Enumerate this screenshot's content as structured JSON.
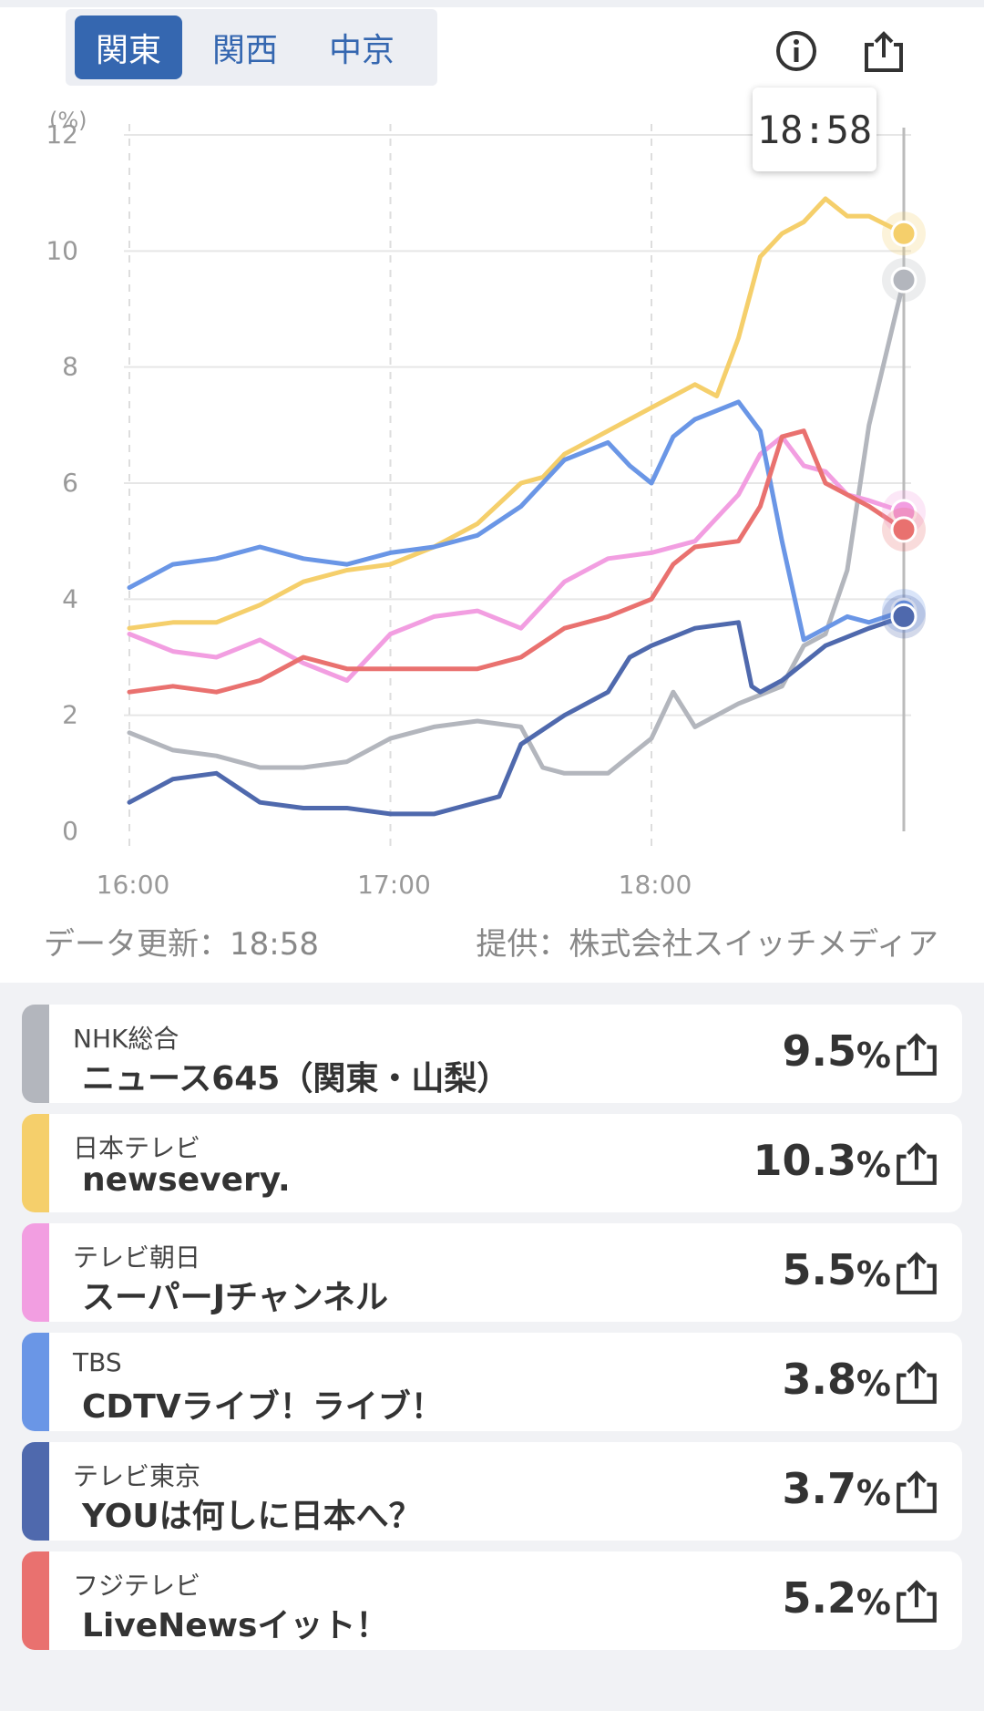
{
  "region_tabs": [
    "関東",
    "関西",
    "中京"
  ],
  "region_active": 0,
  "header_icons": [
    "info-icon",
    "share-icon"
  ],
  "tooltip": "18:58",
  "update_text": "データ更新：18:58",
  "provider_text": "提供：株式会社スイッチメディア",
  "chart_data": {
    "type": "line",
    "ylabel": "(%)",
    "ylim": [
      0,
      12
    ],
    "yticks": [
      "0",
      "2",
      "4",
      "6",
      "8",
      "10",
      "12"
    ],
    "xticks": [
      "16:00",
      "17:00",
      "18:00"
    ],
    "x_range_minutes": [
      0,
      178
    ],
    "grid": true,
    "series": [
      {
        "name": "NHK総合",
        "color": "#b3b6bd",
        "x": [
          0,
          10,
          20,
          30,
          40,
          50,
          60,
          70,
          80,
          90,
          95,
          100,
          110,
          120,
          125,
          130,
          140,
          150,
          155,
          160,
          165,
          170,
          178
        ],
        "y": [
          1.7,
          1.4,
          1.3,
          1.1,
          1.1,
          1.2,
          1.6,
          1.8,
          1.9,
          1.8,
          1.1,
          1.0,
          1.0,
          1.6,
          2.4,
          1.8,
          2.2,
          2.5,
          3.2,
          3.4,
          4.5,
          7.0,
          9.5
        ]
      },
      {
        "name": "日本テレビ",
        "color": "#f5cf6b",
        "x": [
          0,
          10,
          20,
          30,
          40,
          50,
          60,
          70,
          80,
          90,
          95,
          100,
          110,
          120,
          130,
          135,
          140,
          145,
          150,
          155,
          160,
          165,
          170,
          178
        ],
        "y": [
          3.5,
          3.6,
          3.6,
          3.9,
          4.3,
          4.5,
          4.6,
          4.9,
          5.3,
          6.0,
          6.1,
          6.5,
          6.9,
          7.3,
          7.7,
          7.5,
          8.5,
          9.9,
          10.3,
          10.5,
          10.9,
          10.6,
          10.6,
          10.3
        ]
      },
      {
        "name": "テレビ朝日",
        "color": "#f29ee1",
        "x": [
          0,
          10,
          20,
          30,
          40,
          50,
          60,
          70,
          80,
          90,
          100,
          110,
          120,
          130,
          140,
          145,
          150,
          155,
          160,
          165,
          170,
          178
        ],
        "y": [
          3.4,
          3.1,
          3.0,
          3.3,
          2.9,
          2.6,
          3.4,
          3.7,
          3.8,
          3.5,
          4.3,
          4.7,
          4.8,
          5.0,
          5.8,
          6.5,
          6.8,
          6.3,
          6.2,
          5.8,
          5.7,
          5.5
        ]
      },
      {
        "name": "TBS",
        "color": "#6a96e6",
        "x": [
          0,
          10,
          20,
          30,
          40,
          50,
          60,
          70,
          80,
          90,
          100,
          110,
          115,
          120,
          125,
          130,
          140,
          145,
          150,
          155,
          160,
          165,
          170,
          178
        ],
        "y": [
          4.2,
          4.6,
          4.7,
          4.9,
          4.7,
          4.6,
          4.8,
          4.9,
          5.1,
          5.6,
          6.4,
          6.7,
          6.3,
          6.0,
          6.8,
          7.1,
          7.4,
          6.9,
          5.0,
          3.3,
          3.5,
          3.7,
          3.6,
          3.8
        ]
      },
      {
        "name": "テレビ東京",
        "color": "#4f69ad",
        "x": [
          0,
          10,
          20,
          30,
          40,
          50,
          60,
          70,
          80,
          85,
          90,
          100,
          110,
          115,
          120,
          130,
          140,
          143,
          145,
          150,
          160,
          170,
          178
        ],
        "y": [
          0.5,
          0.9,
          1.0,
          0.5,
          0.4,
          0.4,
          0.3,
          0.3,
          0.5,
          0.6,
          1.5,
          2.0,
          2.4,
          3.0,
          3.2,
          3.5,
          3.6,
          2.5,
          2.4,
          2.6,
          3.2,
          3.5,
          3.7
        ]
      },
      {
        "name": "フジテレビ",
        "color": "#e9716f",
        "x": [
          0,
          10,
          20,
          30,
          40,
          50,
          60,
          70,
          80,
          90,
          100,
          110,
          120,
          125,
          130,
          140,
          145,
          150,
          155,
          160,
          165,
          170,
          178
        ],
        "y": [
          2.4,
          2.5,
          2.4,
          2.6,
          3.0,
          2.8,
          2.8,
          2.8,
          2.8,
          3.0,
          3.5,
          3.7,
          4.0,
          4.6,
          4.9,
          5.0,
          5.6,
          6.8,
          6.9,
          6.0,
          5.8,
          5.6,
          5.2
        ]
      }
    ]
  },
  "channels": [
    {
      "station": "NHK総合",
      "program": "ニュース645（関東・山梨）",
      "value": "9.5",
      "unit": "%",
      "color": "#b3b6bd"
    },
    {
      "station": "日本テレビ",
      "program": "newsevery.",
      "value": "10.3",
      "unit": "%",
      "color": "#f5cf6b"
    },
    {
      "station": "テレビ朝日",
      "program": "スーパーJチャンネル",
      "value": "5.5",
      "unit": "%",
      "color": "#f29ee1"
    },
    {
      "station": "TBS",
      "program": "CDTVライブ！ライブ！",
      "value": "3.8",
      "unit": "%",
      "color": "#6a96e6"
    },
    {
      "station": "テレビ東京",
      "program": "YOUは何しに日本へ？",
      "value": "3.7",
      "unit": "%",
      "color": "#4f69ad"
    },
    {
      "station": "フジテレビ",
      "program": "LiveNewsイット！",
      "value": "5.2",
      "unit": "%",
      "color": "#e9716f"
    }
  ]
}
